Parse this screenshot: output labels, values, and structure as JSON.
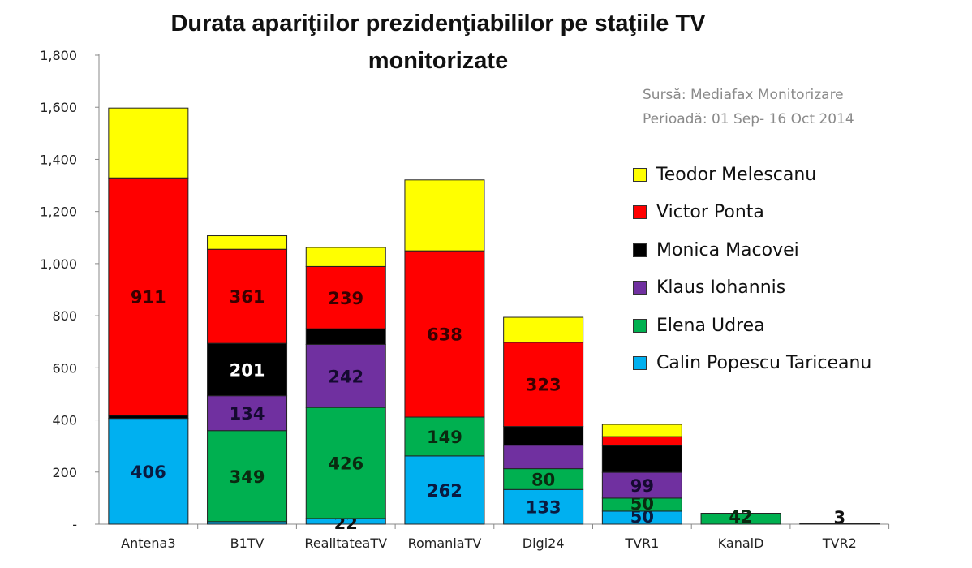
{
  "chart_data": {
    "type": "bar",
    "stacked": true,
    "title": "Durata apariţiilor prezidenţiabililor pe staţiile TV monitorizate",
    "source_lines": [
      "Sursă: Mediafax Monitorizare",
      "Perioadă: 01 Sep- 16 Oct 2014"
    ],
    "xlabel": "",
    "ylabel": "",
    "ylim": [
      0,
      1800
    ],
    "yticks": [
      0,
      200,
      400,
      600,
      800,
      1000,
      1200,
      1400,
      1600,
      1800
    ],
    "ytick_labels": [
      "-",
      "200",
      "400",
      "600",
      "800",
      "1,000",
      "1,200",
      "1,400",
      "1,600",
      "1,800"
    ],
    "legend_position": "right",
    "categories": [
      "Antena3",
      "B1TV",
      "RealitateaTV",
      "RomaniaTV",
      "Digi24",
      "TVR1",
      "KanalD",
      "TVR2"
    ],
    "series": [
      {
        "name": "Calin Popescu Tariceanu",
        "color": "#00b0f0",
        "label_color": "#0a1a40",
        "values": [
          406,
          10,
          22,
          262,
          133,
          50,
          0,
          3
        ],
        "labels": [
          "406",
          null,
          "22",
          "262",
          "133",
          "50",
          null,
          "3"
        ]
      },
      {
        "name": "Elena Udrea",
        "color": "#00b050",
        "label_color": "#0a2a10",
        "values": [
          0,
          349,
          426,
          149,
          80,
          50,
          42,
          0
        ],
        "labels": [
          null,
          "349",
          "426",
          "149",
          "80",
          "50",
          "42",
          null
        ]
      },
      {
        "name": "Klaus Iohannis",
        "color": "#7030a0",
        "label_color": "#150a30",
        "values": [
          0,
          134,
          242,
          0,
          90,
          99,
          0,
          0
        ],
        "labels": [
          null,
          "134",
          "242",
          null,
          null,
          "99",
          null,
          null
        ]
      },
      {
        "name": "Monica Macovei",
        "color": "#000000",
        "label_color": "#ffffff",
        "values": [
          12,
          201,
          60,
          0,
          72,
          103,
          0,
          0
        ],
        "labels": [
          null,
          "201",
          null,
          null,
          null,
          null,
          null,
          null
        ]
      },
      {
        "name": "Victor Ponta",
        "color": "#ff0000",
        "label_color": "#3a0000",
        "values": [
          911,
          361,
          239,
          638,
          323,
          34,
          0,
          0
        ],
        "labels": [
          "911",
          "361",
          "239",
          "638",
          "323",
          null,
          null,
          null
        ]
      },
      {
        "name": "Teodor Melescanu",
        "color": "#ffff00",
        "label_color": "#333300",
        "values": [
          268,
          52,
          73,
          272,
          96,
          47,
          0,
          0
        ],
        "labels": [
          null,
          null,
          null,
          null,
          null,
          null,
          null,
          null
        ]
      }
    ]
  }
}
